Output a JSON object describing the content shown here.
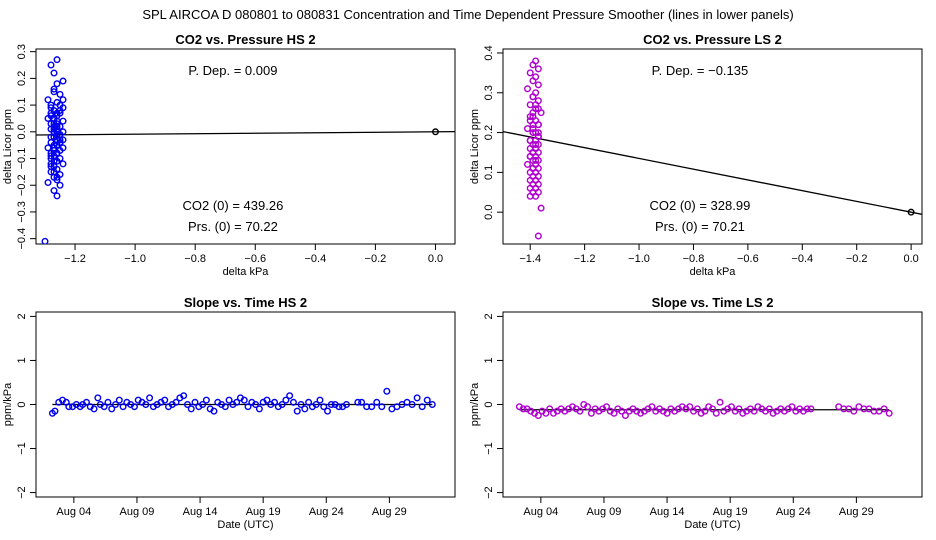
{
  "suptitle": "SPL   AIRCOA D   080801 to 080831   Concentration and Time Dependent Pressure Smoother (lines in lower panels)",
  "colors": {
    "hs": "#0000ee",
    "ls": "#b000d0",
    "line": "#000000",
    "axis": "#000000"
  },
  "chart_data": [
    {
      "id": "co2-pressure-hs",
      "type": "scatter",
      "title": "CO2 vs. Pressure HS 2",
      "xlabel": "delta kPa",
      "ylabel": "delta Licor ppm",
      "xlim": [
        -1.33,
        0.065
      ],
      "ylim": [
        -0.42,
        0.31
      ],
      "xticks": [
        -1.2,
        -1.0,
        -0.8,
        -0.6,
        -0.4,
        -0.2,
        0.0
      ],
      "xtick_labels": [
        "−1.2",
        "−1.0",
        "−0.8",
        "−0.6",
        "−0.4",
        "−0.2",
        "0.0"
      ],
      "yticks": [
        -0.4,
        -0.3,
        -0.2,
        -0.1,
        0.0,
        0.1,
        0.2,
        0.3
      ],
      "ytick_labels": [
        "−0.4",
        "−0.3",
        "−0.2",
        "−0.1",
        "0.0",
        "0.1",
        "0.2",
        "0.3"
      ],
      "color": "#0000ee",
      "points": {
        "x": [
          -1.28,
          -1.27,
          -1.26,
          -1.24,
          -1.27,
          -1.25,
          -1.29,
          -1.26,
          -1.28,
          -1.24,
          -1.27,
          -1.25,
          -1.28,
          -1.26,
          -1.27,
          -1.29,
          -1.24,
          -1.26,
          -1.28,
          -1.25,
          -1.27,
          -1.26,
          -1.28,
          -1.24,
          -1.27,
          -1.25,
          -1.26,
          -1.28,
          -1.27,
          -1.24,
          -1.26,
          -1.28,
          -1.25,
          -1.27,
          -1.26,
          -1.29,
          -1.24,
          -1.27,
          -1.25,
          -1.28,
          -1.26,
          -1.27,
          -1.25,
          -1.28,
          -1.26,
          -1.24,
          -1.27,
          -1.26,
          -1.28,
          -1.25,
          -1.27,
          -1.26,
          -1.29,
          -1.25,
          -1.27,
          -1.26,
          -1.28,
          -1.24,
          -1.26,
          -1.27,
          -1.28,
          -1.25,
          -1.27,
          -1.26,
          -1.28,
          -1.25,
          -1.27,
          -1.26,
          -1.28,
          -1.26,
          -1.27,
          -1.25,
          -1.26,
          -1.27,
          -1.28,
          -1.26,
          -1.27,
          -1.25,
          -1.26,
          -1.27,
          -1.3,
          0.0
        ],
        "y": [
          0.25,
          0.22,
          0.27,
          0.19,
          0.16,
          0.14,
          0.12,
          0.11,
          0.1,
          0.09,
          0.08,
          0.07,
          0.07,
          0.06,
          0.05,
          0.05,
          0.04,
          0.03,
          0.03,
          0.02,
          0.02,
          0.01,
          0.01,
          0.0,
          0.0,
          -0.01,
          -0.01,
          -0.02,
          -0.02,
          -0.03,
          -0.03,
          -0.04,
          -0.04,
          -0.05,
          -0.05,
          -0.06,
          -0.06,
          -0.07,
          -0.07,
          -0.08,
          -0.08,
          -0.09,
          -0.1,
          -0.1,
          -0.11,
          -0.12,
          -0.13,
          -0.14,
          -0.15,
          -0.16,
          -0.17,
          -0.18,
          -0.19,
          -0.2,
          -0.22,
          -0.24,
          -0.13,
          0.12,
          0.18,
          -0.02,
          0.06,
          0.1,
          -0.15,
          0.04,
          -0.09,
          0.08,
          -0.06,
          0.02,
          -0.12,
          0.0,
          0.03,
          -0.04,
          0.07,
          -0.11,
          0.09,
          -0.08,
          0.15,
          -0.03,
          -0.17,
          0.01,
          -0.41,
          0.0
        ]
      },
      "fit_line": {
        "x": [
          -1.33,
          0.065
        ],
        "y": [
          -0.012,
          0.0006
        ]
      },
      "annotations": {
        "pdep": "P. Dep. =  0.009",
        "co2zero": "CO2 (0) =  439.26",
        "prszero": "Prs. (0) = 70.22"
      }
    },
    {
      "id": "co2-pressure-ls",
      "type": "scatter",
      "title": "CO2 vs. Pressure LS 2",
      "xlabel": "delta kPa",
      "ylabel": "delta Licor ppm",
      "xlim": [
        -1.5,
        0.04
      ],
      "ylim": [
        -0.08,
        0.41
      ],
      "xticks": [
        -1.4,
        -1.2,
        -1.0,
        -0.8,
        -0.6,
        -0.4,
        -0.2,
        0.0
      ],
      "xtick_labels": [
        "−1.4",
        "−1.2",
        "−1.0",
        "−0.8",
        "−0.6",
        "−0.4",
        "−0.2",
        "0.0"
      ],
      "yticks": [
        0.0,
        0.1,
        0.2,
        0.3,
        0.4
      ],
      "ytick_labels": [
        "0.0",
        "0.1",
        "0.2",
        "0.3",
        "0.4"
      ],
      "color": "#b000d0",
      "points": {
        "x": [
          -1.38,
          -1.39,
          -1.37,
          -1.4,
          -1.38,
          -1.39,
          -1.37,
          -1.41,
          -1.38,
          -1.39,
          -1.37,
          -1.4,
          -1.38,
          -1.39,
          -1.36,
          -1.4,
          -1.38,
          -1.39,
          -1.37,
          -1.41,
          -1.38,
          -1.39,
          -1.37,
          -1.4,
          -1.38,
          -1.39,
          -1.37,
          -1.4,
          -1.38,
          -1.39,
          -1.37,
          -1.4,
          -1.38,
          -1.39,
          -1.37,
          -1.41,
          -1.38,
          -1.39,
          -1.37,
          -1.4,
          -1.38,
          -1.39,
          -1.37,
          -1.4,
          -1.38,
          -1.39,
          -1.37,
          -1.4,
          -1.38,
          -1.39,
          -1.37,
          -1.4,
          -1.38,
          -1.39,
          -1.37,
          -1.4,
          -1.38,
          -1.39,
          -1.37,
          -1.38,
          -1.39,
          -1.37,
          -1.4,
          -1.38,
          -1.39,
          -1.37,
          -1.38,
          -1.39,
          -1.4,
          -1.38,
          -1.36,
          -1.37,
          0.0
        ],
        "y": [
          0.38,
          0.37,
          0.36,
          0.35,
          0.34,
          0.33,
          0.32,
          0.31,
          0.3,
          0.29,
          0.28,
          0.27,
          0.26,
          0.25,
          0.25,
          0.24,
          0.23,
          0.22,
          0.22,
          0.21,
          0.2,
          0.2,
          0.19,
          0.18,
          0.18,
          0.17,
          0.17,
          0.16,
          0.16,
          0.15,
          0.15,
          0.14,
          0.14,
          0.13,
          0.13,
          0.12,
          0.12,
          0.11,
          0.11,
          0.1,
          0.1,
          0.09,
          0.09,
          0.08,
          0.08,
          0.07,
          0.07,
          0.06,
          0.06,
          0.05,
          0.05,
          0.04,
          0.04,
          0.21,
          0.19,
          0.23,
          0.17,
          0.15,
          0.26,
          0.13,
          0.24,
          0.2,
          0.18,
          0.27,
          0.11,
          0.22,
          0.16,
          0.29,
          0.14,
          0.12,
          0.01,
          -0.06,
          0.0
        ]
      },
      "fit_line": {
        "x": [
          -1.5,
          0.04
        ],
        "y": [
          0.2025,
          -0.0054
        ]
      },
      "annotations": {
        "pdep": "P. Dep. =  −0.135",
        "co2zero": "CO2 (0) =  328.99",
        "prszero": "Prs. (0) = 70.21"
      }
    },
    {
      "id": "slope-time-hs",
      "type": "scatter",
      "title": "Slope vs. Time HS 2",
      "xlabel": "Date (UTC)",
      "ylabel": "ppm/kPa",
      "xlim": [
        0.0,
        33.2
      ],
      "ylim": [
        -2.1,
        2.1
      ],
      "xticks": [
        3,
        8,
        13,
        18,
        23,
        28
      ],
      "xtick_labels": [
        "Aug 04",
        "Aug 09",
        "Aug 14",
        "Aug 19",
        "Aug 24",
        "Aug 29"
      ],
      "yticks": [
        -2,
        -1,
        0,
        1,
        2
      ],
      "ytick_labels": [
        "−2",
        "−1",
        "0",
        "1",
        "2"
      ],
      "color": "#0000ee",
      "points": {
        "x": [
          1.3,
          1.5,
          1.8,
          2.1,
          2.4,
          2.6,
          2.9,
          3.2,
          3.5,
          3.7,
          4.0,
          4.3,
          4.6,
          4.9,
          5.1,
          5.4,
          5.7,
          6.0,
          6.3,
          6.6,
          6.9,
          7.2,
          7.5,
          7.8,
          8.1,
          8.4,
          8.7,
          9.0,
          9.3,
          9.6,
          9.9,
          10.2,
          10.5,
          10.8,
          11.1,
          11.4,
          11.7,
          12.0,
          12.3,
          12.6,
          12.9,
          13.2,
          13.5,
          13.8,
          14.1,
          14.4,
          14.7,
          15.0,
          15.3,
          15.6,
          15.9,
          16.2,
          16.5,
          16.8,
          17.1,
          17.4,
          17.7,
          18.0,
          18.3,
          18.6,
          18.9,
          19.2,
          19.5,
          19.8,
          20.1,
          20.4,
          20.7,
          21.0,
          21.3,
          21.6,
          21.9,
          22.2,
          22.5,
          22.8,
          23.1,
          23.4,
          23.7,
          24.0,
          24.3,
          24.6,
          25.5,
          25.8,
          26.2,
          26.6,
          27.0,
          27.4,
          27.8,
          28.2,
          28.6,
          29.0,
          29.4,
          29.8,
          30.2,
          30.6,
          31.0,
          31.4
        ],
        "y": [
          -0.2,
          -0.15,
          0.05,
          0.1,
          0.05,
          -0.05,
          -0.05,
          0.0,
          -0.05,
          0.0,
          0.05,
          -0.05,
          -0.1,
          0.15,
          0.0,
          -0.05,
          0.05,
          -0.1,
          0.0,
          0.1,
          -0.05,
          0.05,
          0.0,
          -0.05,
          0.1,
          0.05,
          0.0,
          0.15,
          -0.05,
          0.0,
          0.05,
          0.1,
          -0.05,
          0.0,
          0.05,
          0.15,
          0.2,
          0.0,
          -0.1,
          0.05,
          -0.05,
          0.0,
          0.1,
          -0.1,
          -0.15,
          0.05,
          0.0,
          -0.05,
          0.1,
          0.0,
          0.05,
          0.15,
          0.1,
          -0.05,
          0.05,
          0.0,
          -0.1,
          0.05,
          0.1,
          0.0,
          0.05,
          -0.05,
          0.0,
          0.1,
          0.2,
          0.05,
          -0.15,
          0.0,
          -0.1,
          0.05,
          -0.05,
          0.0,
          0.1,
          -0.05,
          -0.15,
          0.0,
          0.0,
          -0.05,
          -0.05,
          0.0,
          0.05,
          0.05,
          -0.05,
          -0.05,
          0.05,
          -0.05,
          0.3,
          -0.1,
          -0.05,
          0.0,
          0.05,
          0.0,
          0.15,
          -0.05,
          0.1,
          0.0
        ],
        "x_note": "days since Aug 01"
      },
      "fit_line": {
        "x": [
          1.3,
          31.4
        ],
        "y": [
          0.0,
          0.0
        ]
      }
    },
    {
      "id": "slope-time-ls",
      "type": "scatter",
      "title": "Slope vs. Time LS 2",
      "xlabel": "Date (UTC)",
      "ylabel": "ppm/kPa",
      "xlim": [
        0.0,
        33.2
      ],
      "ylim": [
        -2.1,
        2.1
      ],
      "xticks": [
        3,
        8,
        13,
        18,
        23,
        28
      ],
      "xtick_labels": [
        "Aug 04",
        "Aug 09",
        "Aug 14",
        "Aug 19",
        "Aug 24",
        "Aug 29"
      ],
      "yticks": [
        -2,
        -1,
        0,
        1,
        2
      ],
      "ytick_labels": [
        "−2",
        "−1",
        "0",
        "1",
        "2"
      ],
      "color": "#b000d0",
      "points": {
        "x": [
          1.3,
          1.6,
          1.9,
          2.2,
          2.5,
          2.8,
          3.1,
          3.4,
          3.7,
          4.0,
          4.3,
          4.6,
          4.9,
          5.2,
          5.5,
          5.8,
          6.1,
          6.4,
          6.7,
          7.0,
          7.3,
          7.6,
          7.9,
          8.2,
          8.5,
          8.8,
          9.1,
          9.4,
          9.7,
          10.0,
          10.3,
          10.6,
          10.9,
          11.2,
          11.5,
          11.8,
          12.1,
          12.4,
          12.7,
          13.0,
          13.3,
          13.6,
          13.9,
          14.2,
          14.5,
          14.8,
          15.1,
          15.4,
          15.7,
          16.0,
          16.3,
          16.6,
          16.9,
          17.2,
          17.5,
          17.8,
          18.1,
          18.4,
          18.7,
          19.0,
          19.3,
          19.6,
          19.9,
          20.2,
          20.5,
          20.8,
          21.1,
          21.4,
          21.7,
          22.0,
          22.3,
          22.6,
          22.9,
          23.2,
          23.5,
          23.8,
          24.1,
          24.4,
          26.6,
          27.0,
          27.4,
          27.8,
          28.2,
          28.6,
          29.0,
          29.4,
          29.8,
          30.2,
          30.6
        ],
        "y": [
          -0.05,
          -0.1,
          -0.1,
          -0.15,
          -0.2,
          -0.25,
          -0.15,
          -0.2,
          -0.1,
          -0.2,
          -0.15,
          -0.1,
          -0.15,
          -0.1,
          -0.05,
          -0.1,
          -0.15,
          0.0,
          -0.05,
          -0.2,
          -0.1,
          -0.15,
          -0.1,
          -0.05,
          -0.15,
          -0.2,
          -0.1,
          -0.15,
          -0.25,
          -0.15,
          -0.1,
          -0.15,
          -0.2,
          -0.15,
          -0.1,
          -0.05,
          -0.15,
          -0.1,
          -0.15,
          -0.2,
          -0.1,
          -0.15,
          -0.1,
          -0.05,
          -0.1,
          -0.05,
          -0.15,
          -0.1,
          -0.2,
          -0.15,
          -0.05,
          -0.1,
          -0.2,
          0.05,
          -0.15,
          -0.1,
          -0.05,
          -0.15,
          -0.1,
          -0.2,
          -0.15,
          -0.1,
          -0.15,
          -0.05,
          -0.1,
          -0.15,
          -0.1,
          -0.2,
          -0.15,
          -0.1,
          -0.15,
          -0.1,
          -0.05,
          -0.15,
          -0.1,
          -0.15,
          -0.1,
          -0.1,
          -0.05,
          -0.1,
          -0.1,
          -0.15,
          -0.05,
          -0.1,
          -0.1,
          -0.15,
          -0.15,
          -0.1,
          -0.2
        ],
        "x_note": "days since Aug 01"
      },
      "fit_line": {
        "x": [
          1.3,
          30.6
        ],
        "y": [
          -0.12,
          -0.12
        ]
      }
    }
  ]
}
